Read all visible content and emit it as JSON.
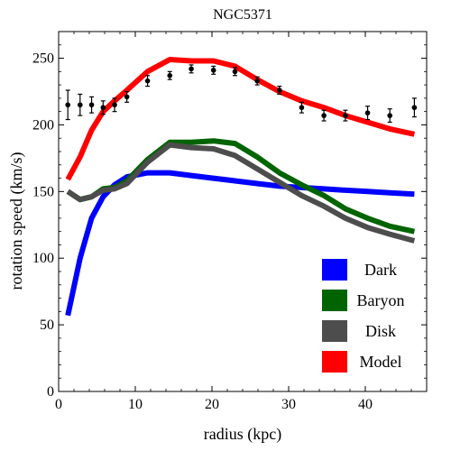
{
  "chart_data": {
    "type": "line",
    "title": "NGC5371",
    "xlabel": "radius (kpc)",
    "ylabel": "rotation speed (km/s)",
    "xlim": [
      0,
      48
    ],
    "ylim": [
      0,
      270
    ],
    "x_ticks": [
      0,
      10,
      20,
      30,
      40
    ],
    "y_ticks": [
      0,
      50,
      100,
      150,
      200,
      250
    ],
    "legend_position": "bottom-right",
    "frame": true,
    "grid": false,
    "series": [
      {
        "name": "Dark",
        "color": "#0000ff",
        "x": [
          1.2,
          2.8,
          4.3,
          5.8,
          7.3,
          8.9,
          11.6,
          14.5,
          17.3,
          20.2,
          23.0,
          25.9,
          28.8,
          31.7,
          34.6,
          37.4,
          40.3,
          43.2,
          46.4
        ],
        "y": [
          57,
          100,
          130,
          146,
          155,
          161,
          164,
          164,
          162,
          160,
          158,
          156,
          154,
          153,
          152,
          151,
          150,
          149,
          148
        ]
      },
      {
        "name": "Baryon",
        "color": "#006400",
        "x": [
          1.2,
          2.8,
          4.3,
          5.8,
          7.3,
          8.9,
          11.6,
          14.5,
          17.3,
          20.2,
          23.0,
          25.9,
          28.8,
          31.7,
          34.6,
          37.4,
          40.3,
          43.2,
          46.4
        ],
        "y": [
          150,
          144,
          146,
          152,
          153,
          158,
          174,
          187,
          187,
          188,
          186,
          176,
          164,
          155,
          147,
          137,
          130,
          124,
          120
        ]
      },
      {
        "name": "Disk",
        "color": "#4d4d4d",
        "x": [
          1.2,
          2.8,
          4.3,
          5.8,
          7.3,
          8.9,
          11.6,
          14.5,
          17.3,
          20.2,
          23.0,
          25.9,
          28.8,
          31.7,
          34.6,
          37.4,
          40.3,
          43.2,
          46.4
        ],
        "y": [
          150,
          144,
          146,
          151,
          152,
          156,
          172,
          185,
          183,
          182,
          177,
          167,
          157,
          147,
          139,
          130,
          123,
          118,
          113
        ]
      },
      {
        "name": "Model",
        "color": "#ff0000",
        "x": [
          1.2,
          2.8,
          4.3,
          5.8,
          7.3,
          8.9,
          11.6,
          14.5,
          17.3,
          20.2,
          23.0,
          25.9,
          28.8,
          31.7,
          34.6,
          37.4,
          40.3,
          43.2,
          46.4
        ],
        "y": [
          159,
          176,
          196,
          210,
          218,
          226,
          240,
          249,
          248,
          248,
          244,
          234,
          225,
          218,
          213,
          207,
          202,
          197,
          193
        ]
      }
    ],
    "observed": {
      "x": [
        1.2,
        2.8,
        4.3,
        5.8,
        7.3,
        8.9,
        11.6,
        14.5,
        17.3,
        20.2,
        23.0,
        25.9,
        28.8,
        31.7,
        34.6,
        37.4,
        40.3,
        43.2,
        46.4
      ],
      "y": [
        215,
        215,
        215,
        213,
        215,
        221,
        233,
        237,
        242,
        241,
        240,
        233,
        226,
        213,
        207,
        207,
        209,
        207,
        213
      ],
      "err": [
        11,
        8,
        6,
        5,
        5,
        4,
        4,
        3,
        3,
        3,
        3,
        3,
        3,
        4,
        4,
        4,
        5,
        5,
        7
      ]
    }
  }
}
